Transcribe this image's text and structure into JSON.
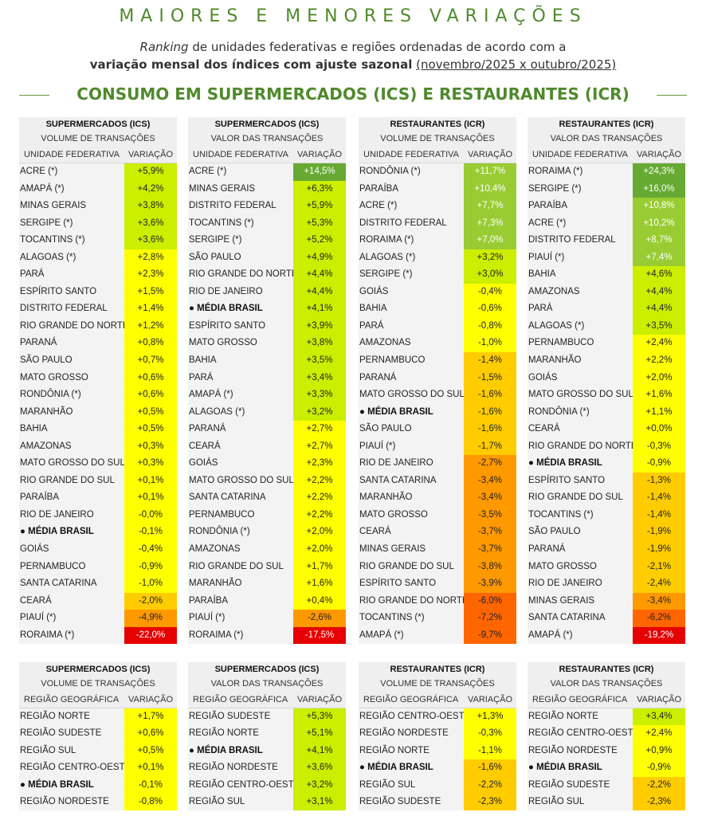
{
  "header": {
    "title": "MAIORES E MENORES VARIAÇÕES",
    "subtitle_em": "Ranking",
    "subtitle_rest": " de unidades federativas e regiões ordenadas de acordo com a",
    "subtitle_bold": "variação mensal dos índices com ajuste sazonal",
    "subtitle_ul": "(novembro/2025 x outubro/2025)",
    "section": "CONSUMO EM SUPERMERCADOS (ICS) E RESTAURANTES (ICR)"
  },
  "colors": {
    "ramp": [
      "#e60000",
      "#ff6600",
      "#ff9900",
      "#ffcc00",
      "#ffff00",
      "#ccee00",
      "#99cc33",
      "#66aa33"
    ]
  },
  "tables_uf": [
    {
      "h1": "SUPERMERCADOS (ICS)",
      "h2": "VOLUME DE TRANSAÇÕES",
      "col1": "UNIDADE FEDERATIVA",
      "col2": "VARIAÇÃO",
      "rows": [
        {
          "name": "ACRE (*)",
          "value": "+5,9%",
          "num": 5.9
        },
        {
          "name": "AMAPÁ (*)",
          "value": "+4,2%",
          "num": 4.2
        },
        {
          "name": "MINAS GERAIS",
          "value": "+3,8%",
          "num": 3.8
        },
        {
          "name": "SERGIPE (*)",
          "value": "+3,6%",
          "num": 3.6
        },
        {
          "name": "TOCANTINS (*)",
          "value": "+3,6%",
          "num": 3.6
        },
        {
          "name": "ALAGOAS (*)",
          "value": "+2,8%",
          "num": 2.8
        },
        {
          "name": "PARÁ",
          "value": "+2,3%",
          "num": 2.3
        },
        {
          "name": "ESPÍRITO SANTO",
          "value": "+1,5%",
          "num": 1.5
        },
        {
          "name": "DISTRITO FEDERAL",
          "value": "+1,4%",
          "num": 1.4
        },
        {
          "name": "RIO GRANDE DO NORTE",
          "value": "+1,2%",
          "num": 1.2
        },
        {
          "name": "PARANÁ",
          "value": "+0,8%",
          "num": 0.8
        },
        {
          "name": "SÃO PAULO",
          "value": "+0,7%",
          "num": 0.7
        },
        {
          "name": "MATO GROSSO",
          "value": "+0,6%",
          "num": 0.6
        },
        {
          "name": "RONDÔNIA (*)",
          "value": "+0,6%",
          "num": 0.6
        },
        {
          "name": "MARANHÃO",
          "value": "+0,5%",
          "num": 0.5
        },
        {
          "name": "BAHIA",
          "value": "+0,5%",
          "num": 0.5
        },
        {
          "name": "AMAZONAS",
          "value": "+0,3%",
          "num": 0.3
        },
        {
          "name": "MATO GROSSO DO SUL",
          "value": "+0,3%",
          "num": 0.3
        },
        {
          "name": "RIO GRANDE DO SUL",
          "value": "+0,1%",
          "num": 0.1
        },
        {
          "name": "PARAÍBA",
          "value": "+0,1%",
          "num": 0.1
        },
        {
          "name": "RIO DE JANEIRO",
          "value": "-0,0%",
          "num": 0.0
        },
        {
          "name": "● MÉDIA BRASIL",
          "value": "-0,1%",
          "num": -0.1,
          "avg": true
        },
        {
          "name": "GOIÁS",
          "value": "-0,4%",
          "num": -0.4
        },
        {
          "name": "PERNAMBUCO",
          "value": "-0,9%",
          "num": -0.9
        },
        {
          "name": "SANTA CATARINA",
          "value": "-1,0%",
          "num": -1.0
        },
        {
          "name": "CEARÁ",
          "value": "-2,0%",
          "num": -2.0
        },
        {
          "name": "PIAUÍ (*)",
          "value": "-4,9%",
          "num": -4.9
        },
        {
          "name": "RORAIMA (*)",
          "value": "-22,0%",
          "num": -22.0
        }
      ]
    },
    {
      "h1": "SUPERMERCADOS (ICS)",
      "h2": "VALOR DAS TRANSAÇÕES",
      "col1": "UNIDADE FEDERATIVA",
      "col2": "VARIAÇÃO",
      "rows": [
        {
          "name": "ACRE (*)",
          "value": "+14,5%",
          "num": 14.5
        },
        {
          "name": "MINAS GERAIS",
          "value": "+6,3%",
          "num": 6.3
        },
        {
          "name": "DISTRITO FEDERAL",
          "value": "+5,9%",
          "num": 5.9
        },
        {
          "name": "TOCANTINS (*)",
          "value": "+5,3%",
          "num": 5.3
        },
        {
          "name": "SERGIPE (*)",
          "value": "+5,2%",
          "num": 5.2
        },
        {
          "name": "SÃO PAULO",
          "value": "+4,9%",
          "num": 4.9
        },
        {
          "name": "RIO GRANDE DO NORTE",
          "value": "+4,4%",
          "num": 4.4
        },
        {
          "name": "RIO DE JANEIRO",
          "value": "+4,4%",
          "num": 4.4
        },
        {
          "name": "● MÉDIA BRASIL",
          "value": "+4,1%",
          "num": 4.1,
          "avg": true
        },
        {
          "name": "ESPÍRITO SANTO",
          "value": "+3,9%",
          "num": 3.9
        },
        {
          "name": "MATO GROSSO",
          "value": "+3,8%",
          "num": 3.8
        },
        {
          "name": "BAHIA",
          "value": "+3,5%",
          "num": 3.5
        },
        {
          "name": "PARÁ",
          "value": "+3,4%",
          "num": 3.4
        },
        {
          "name": "AMAPÁ (*)",
          "value": "+3,3%",
          "num": 3.3
        },
        {
          "name": "ALAGOAS (*)",
          "value": "+3,2%",
          "num": 3.2
        },
        {
          "name": "PARANÁ",
          "value": "+2,7%",
          "num": 2.7
        },
        {
          "name": "CEARÁ",
          "value": "+2,7%",
          "num": 2.7
        },
        {
          "name": "GOIÁS",
          "value": "+2,3%",
          "num": 2.3
        },
        {
          "name": "MATO GROSSO DO SUL",
          "value": "+2,2%",
          "num": 2.2
        },
        {
          "name": "SANTA CATARINA",
          "value": "+2,2%",
          "num": 2.2
        },
        {
          "name": "PERNAMBUCO",
          "value": "+2,2%",
          "num": 2.2
        },
        {
          "name": "RONDÔNIA (*)",
          "value": "+2,0%",
          "num": 2.0
        },
        {
          "name": "AMAZONAS",
          "value": "+2,0%",
          "num": 2.0
        },
        {
          "name": "RIO GRANDE DO SUL",
          "value": "+1,7%",
          "num": 1.7
        },
        {
          "name": "MARANHÃO",
          "value": "+1,6%",
          "num": 1.6
        },
        {
          "name": "PARAÍBA",
          "value": "+0,4%",
          "num": 0.4
        },
        {
          "name": "PIAUÍ (*)",
          "value": "-2,6%",
          "num": -2.6
        },
        {
          "name": "RORAIMA (*)",
          "value": "-17,5%",
          "num": -17.5
        }
      ]
    },
    {
      "h1": "RESTAURANTES (ICR)",
      "h2": "VOLUME DE TRANSAÇÕES",
      "col1": "UNIDADE FEDERATIVA",
      "col2": "VARIAÇÃO",
      "rows": [
        {
          "name": "RONDÔNIA (*)",
          "value": "+11,7%",
          "num": 11.7
        },
        {
          "name": "PARAÍBA",
          "value": "+10,4%",
          "num": 10.4
        },
        {
          "name": "ACRE (*)",
          "value": "+7,7%",
          "num": 7.7
        },
        {
          "name": "DISTRITO FEDERAL",
          "value": "+7,3%",
          "num": 7.3
        },
        {
          "name": "RORAIMA (*)",
          "value": "+7,0%",
          "num": 7.0
        },
        {
          "name": "ALAGOAS (*)",
          "value": "+3,2%",
          "num": 3.2
        },
        {
          "name": "SERGIPE (*)",
          "value": "+3,0%",
          "num": 3.0
        },
        {
          "name": "GOIÁS",
          "value": "-0,4%",
          "num": -0.4
        },
        {
          "name": "BAHIA",
          "value": "-0,6%",
          "num": -0.6
        },
        {
          "name": "PARÁ",
          "value": "-0,8%",
          "num": -0.8
        },
        {
          "name": "AMAZONAS",
          "value": "-1,0%",
          "num": -1.0
        },
        {
          "name": "PERNAMBUCO",
          "value": "-1,4%",
          "num": -1.4
        },
        {
          "name": "PARANÁ",
          "value": "-1,5%",
          "num": -1.5
        },
        {
          "name": "MATO GROSSO DO SUL",
          "value": "-1,6%",
          "num": -1.6
        },
        {
          "name": "● MÉDIA BRASIL",
          "value": "-1,6%",
          "num": -1.6,
          "avg": true
        },
        {
          "name": "SÃO PAULO",
          "value": "-1,6%",
          "num": -1.6
        },
        {
          "name": "PIAUÍ (*)",
          "value": "-1,7%",
          "num": -1.7
        },
        {
          "name": "RIO DE JANEIRO",
          "value": "-2,7%",
          "num": -2.7
        },
        {
          "name": "SANTA CATARINA",
          "value": "-3,4%",
          "num": -3.4
        },
        {
          "name": "MARANHÃO",
          "value": "-3,4%",
          "num": -3.4
        },
        {
          "name": "MATO GROSSO",
          "value": "-3,5%",
          "num": -3.5
        },
        {
          "name": "CEARÁ",
          "value": "-3,7%",
          "num": -3.7
        },
        {
          "name": "MINAS GERAIS",
          "value": "-3,7%",
          "num": -3.7
        },
        {
          "name": "RIO GRANDE DO SUL",
          "value": "-3,8%",
          "num": -3.8
        },
        {
          "name": "ESPÍRITO SANTO",
          "value": "-3,9%",
          "num": -3.9
        },
        {
          "name": "RIO GRANDE DO NORTE",
          "value": "-6,0%",
          "num": -6.0
        },
        {
          "name": "TOCANTINS (*)",
          "value": "-7,2%",
          "num": -7.2
        },
        {
          "name": "AMAPÁ (*)",
          "value": "-9,7%",
          "num": -9.7
        }
      ]
    },
    {
      "h1": "RESTAURANTES (ICR)",
      "h2": "VALOR DAS TRANSAÇÕES",
      "col1": "UNIDADE FEDERATIVA",
      "col2": "VARIAÇÃO",
      "rows": [
        {
          "name": "RORAIMA (*)",
          "value": "+24,3%",
          "num": 24.3
        },
        {
          "name": "SERGIPE (*)",
          "value": "+16,0%",
          "num": 16.0
        },
        {
          "name": "PARAÍBA",
          "value": "+10,8%",
          "num": 10.8
        },
        {
          "name": "ACRE (*)",
          "value": "+10,2%",
          "num": 10.2
        },
        {
          "name": "DISTRITO FEDERAL",
          "value": "+8,7%",
          "num": 8.7
        },
        {
          "name": "PIAUÍ (*)",
          "value": "+7,4%",
          "num": 7.4
        },
        {
          "name": "BAHIA",
          "value": "+4,6%",
          "num": 4.6
        },
        {
          "name": "AMAZONAS",
          "value": "+4,4%",
          "num": 4.4
        },
        {
          "name": "PARÁ",
          "value": "+4,4%",
          "num": 4.4
        },
        {
          "name": "ALAGOAS (*)",
          "value": "+3,5%",
          "num": 3.5
        },
        {
          "name": "PERNAMBUCO",
          "value": "+2,4%",
          "num": 2.4
        },
        {
          "name": "MARANHÃO",
          "value": "+2,2%",
          "num": 2.2
        },
        {
          "name": "GOIÁS",
          "value": "+2,0%",
          "num": 2.0
        },
        {
          "name": "MATO GROSSO DO SUL",
          "value": "+1,6%",
          "num": 1.6
        },
        {
          "name": "RONDÔNIA (*)",
          "value": "+1,1%",
          "num": 1.1
        },
        {
          "name": "CEARÁ",
          "value": "+0,0%",
          "num": 0.0
        },
        {
          "name": "RIO GRANDE DO NORTE",
          "value": "-0,3%",
          "num": -0.3
        },
        {
          "name": "● MÉDIA BRASIL",
          "value": "-0,9%",
          "num": -0.9,
          "avg": true
        },
        {
          "name": "ESPÍRITO SANTO",
          "value": "-1,3%",
          "num": -1.3
        },
        {
          "name": "RIO GRANDE DO SUL",
          "value": "-1,4%",
          "num": -1.4
        },
        {
          "name": "TOCANTINS (*)",
          "value": "-1,4%",
          "num": -1.4
        },
        {
          "name": "SÃO PAULO",
          "value": "-1,9%",
          "num": -1.9
        },
        {
          "name": "PARANÁ",
          "value": "-1,9%",
          "num": -1.9
        },
        {
          "name": "MATO GROSSO",
          "value": "-2,1%",
          "num": -2.1
        },
        {
          "name": "RIO DE JANEIRO",
          "value": "-2,4%",
          "num": -2.4
        },
        {
          "name": "MINAS GERAIS",
          "value": "-3,4%",
          "num": -3.4
        },
        {
          "name": "SANTA CATARINA",
          "value": "-6,2%",
          "num": -6.2
        },
        {
          "name": "AMAPÁ (*)",
          "value": "-19,2%",
          "num": -19.2
        }
      ]
    }
  ],
  "tables_reg": [
    {
      "h1": "SUPERMERCADOS (ICS)",
      "h2": "VOLUME DE TRANSAÇÕES",
      "col1": "REGIÃO GEOGRÁFICA",
      "col2": "VARIAÇÃO",
      "rows": [
        {
          "name": "REGIÃO NORTE",
          "value": "+1,7%",
          "num": 1.7
        },
        {
          "name": "REGIÃO SUDESTE",
          "value": "+0,6%",
          "num": 0.6
        },
        {
          "name": "REGIÃO SUL",
          "value": "+0,5%",
          "num": 0.5
        },
        {
          "name": "REGIÃO CENTRO-OESTE",
          "value": "+0,1%",
          "num": 0.1
        },
        {
          "name": "● MÉDIA BRASIL",
          "value": "-0,1%",
          "num": -0.1,
          "avg": true
        },
        {
          "name": "REGIÃO NORDESTE",
          "value": "-0,8%",
          "num": -0.8
        }
      ]
    },
    {
      "h1": "SUPERMERCADOS (ICS)",
      "h2": "VALOR DAS TRANSAÇÕES",
      "col1": "REGIÃO GEOGRÁFICA",
      "col2": "VARIAÇÃO",
      "rows": [
        {
          "name": "REGIÃO SUDESTE",
          "value": "+5,3%",
          "num": 5.3
        },
        {
          "name": "REGIÃO NORTE",
          "value": "+5,1%",
          "num": 5.1
        },
        {
          "name": "● MÉDIA BRASIL",
          "value": "+4,1%",
          "num": 4.1,
          "avg": true
        },
        {
          "name": "REGIÃO NORDESTE",
          "value": "+3,6%",
          "num": 3.6
        },
        {
          "name": "REGIÃO CENTRO-OESTE",
          "value": "+3,2%",
          "num": 3.2
        },
        {
          "name": "REGIÃO SUL",
          "value": "+3,1%",
          "num": 3.1
        }
      ]
    },
    {
      "h1": "RESTAURANTES (ICR)",
      "h2": "VOLUME DE TRANSAÇÕES",
      "col1": "REGIÃO GEOGRÁFICA",
      "col2": "VARIAÇÃO",
      "rows": [
        {
          "name": "REGIÃO CENTRO-OESTE",
          "value": "+1,3%",
          "num": 1.3
        },
        {
          "name": "REGIÃO NORDESTE",
          "value": "-0,3%",
          "num": -0.3
        },
        {
          "name": "REGIÃO NORTE",
          "value": "-1,1%",
          "num": -1.1
        },
        {
          "name": "● MÉDIA BRASIL",
          "value": "-1,6%",
          "num": -1.6,
          "avg": true
        },
        {
          "name": "REGIÃO SUL",
          "value": "-2,2%",
          "num": -2.2
        },
        {
          "name": "REGIÃO SUDESTE",
          "value": "-2,3%",
          "num": -2.3
        }
      ]
    },
    {
      "h1": "RESTAURANTES (ICR)",
      "h2": "VALOR DAS TRANSAÇÕES",
      "col1": "REGIÃO GEOGRÁFICA",
      "col2": "VARIAÇÃO",
      "rows": [
        {
          "name": "REGIÃO NORTE",
          "value": "+3,4%",
          "num": 3.4
        },
        {
          "name": "REGIÃO CENTRO-OESTE",
          "value": "+2,4%",
          "num": 2.4
        },
        {
          "name": "REGIÃO NORDESTE",
          "value": "+0,9%",
          "num": 0.9
        },
        {
          "name": "● MÉDIA BRASIL",
          "value": "-0,9%",
          "num": -0.9,
          "avg": true
        },
        {
          "name": "REGIÃO SUDESTE",
          "value": "-2,2%",
          "num": -2.2
        },
        {
          "name": "REGIÃO SUL",
          "value": "-2,3%",
          "num": -2.3
        }
      ]
    }
  ]
}
